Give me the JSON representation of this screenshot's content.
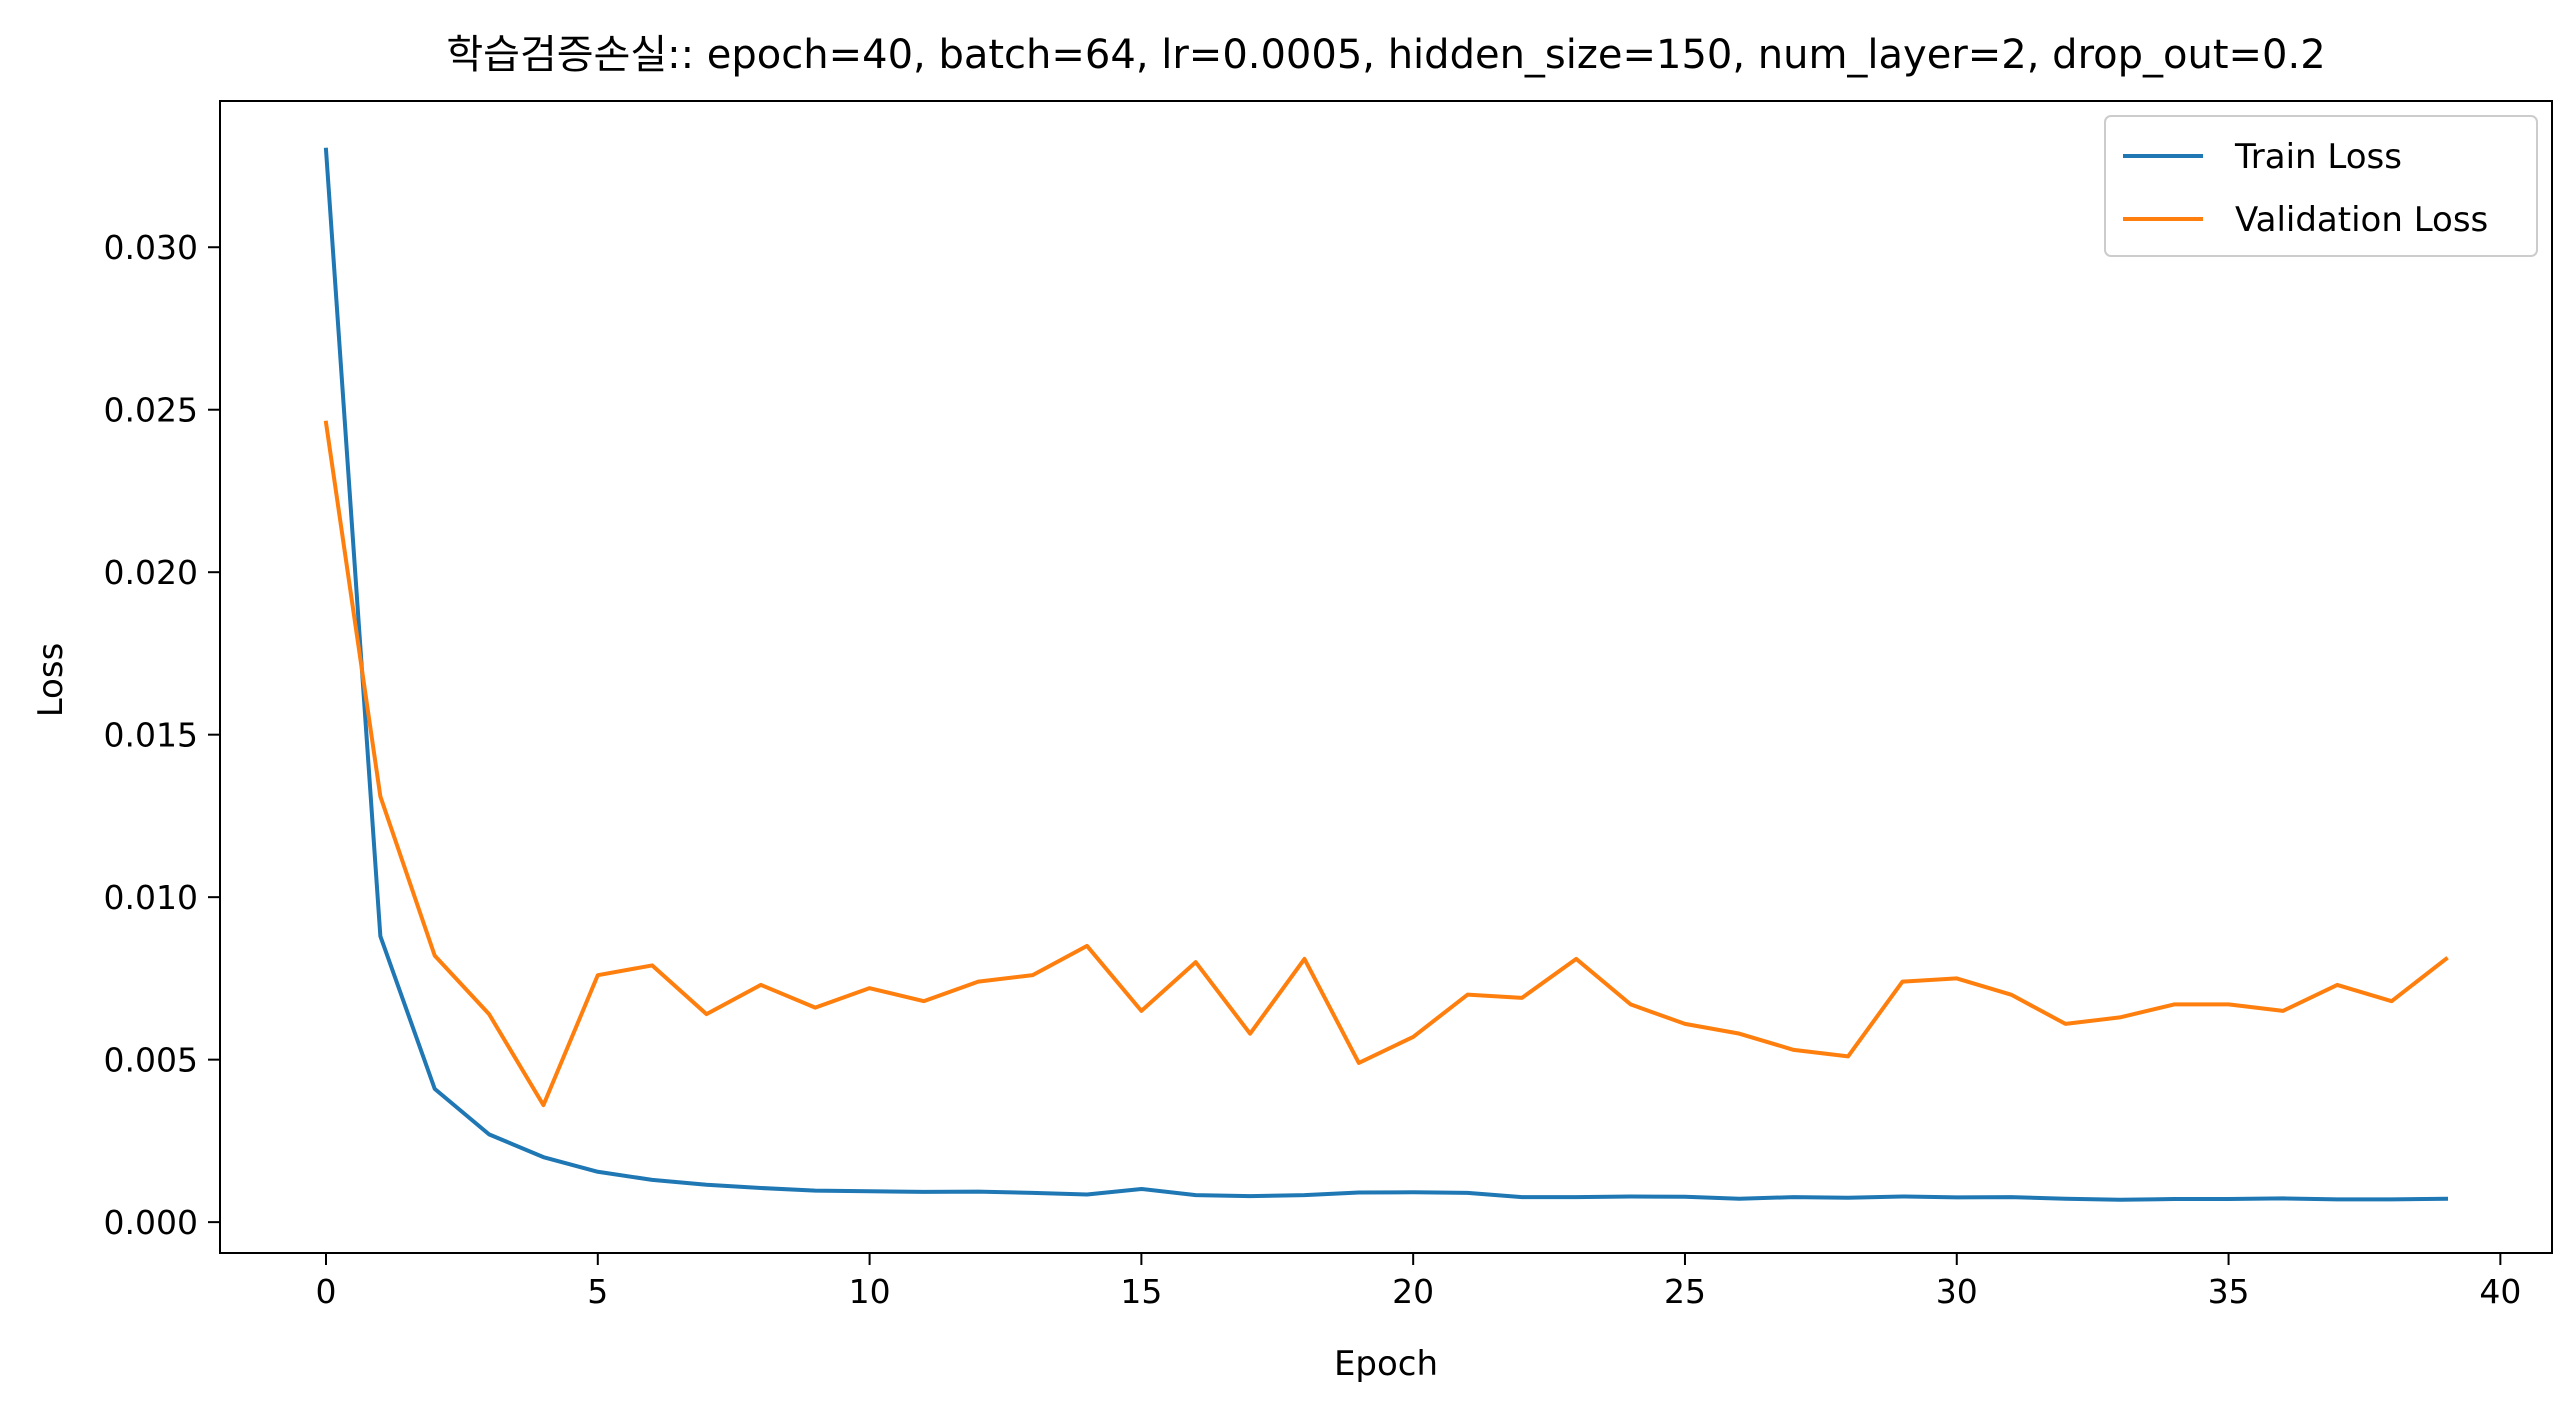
{
  "chart_data": {
    "type": "line",
    "title": "학습검증손실:: epoch=40, batch=64, lr=0.0005, hidden_size=150, num_layer=2, drop_out=0.2",
    "xlabel": "Epoch",
    "ylabel": "Loss",
    "xlim": [
      -1.95,
      40.95
    ],
    "ylim": [
      -0.00095,
      0.0345
    ],
    "xticks": [
      0,
      5,
      10,
      15,
      20,
      25,
      30,
      35,
      40
    ],
    "xtick_labels": [
      "0",
      "5",
      "10",
      "15",
      "20",
      "25",
      "30",
      "35",
      "40"
    ],
    "yticks": [
      0.0,
      0.005,
      0.01,
      0.015,
      0.02,
      0.025,
      0.03
    ],
    "ytick_labels": [
      "0.000",
      "0.005",
      "0.010",
      "0.015",
      "0.020",
      "0.025",
      "0.030"
    ],
    "grid": false,
    "legend_position": "top-right",
    "x": [
      0,
      1,
      2,
      3,
      4,
      5,
      6,
      7,
      8,
      9,
      10,
      11,
      12,
      13,
      14,
      15,
      16,
      17,
      18,
      19,
      20,
      21,
      22,
      23,
      24,
      25,
      26,
      27,
      28,
      29,
      30,
      31,
      32,
      33,
      34,
      35,
      36,
      37,
      38,
      39
    ],
    "series": [
      {
        "name": "Train Loss",
        "color": "#1f77b4",
        "values": [
          0.033,
          0.0088,
          0.0041,
          0.0027,
          0.002,
          0.00155,
          0.0013,
          0.00115,
          0.00105,
          0.00097,
          0.00095,
          0.00093,
          0.00094,
          0.0009,
          0.00085,
          0.00102,
          0.00083,
          0.0008,
          0.00083,
          0.00091,
          0.00092,
          0.0009,
          0.00077,
          0.00077,
          0.00079,
          0.00078,
          0.00072,
          0.00077,
          0.00075,
          0.00079,
          0.00076,
          0.00077,
          0.00072,
          0.00069,
          0.00071,
          0.00071,
          0.00073,
          0.0007,
          0.0007,
          0.00072
        ]
      },
      {
        "name": "Validation Loss",
        "color": "#ff7f0e",
        "values": [
          0.0246,
          0.0131,
          0.0082,
          0.0064,
          0.0036,
          0.0076,
          0.0079,
          0.0064,
          0.0073,
          0.0066,
          0.0072,
          0.0068,
          0.0074,
          0.0076,
          0.0085,
          0.0065,
          0.008,
          0.0058,
          0.0081,
          0.0049,
          0.0057,
          0.007,
          0.0069,
          0.0081,
          0.0067,
          0.0061,
          0.0058,
          0.0053,
          0.0051,
          0.0074,
          0.0075,
          0.007,
          0.0061,
          0.0063,
          0.0067,
          0.0067,
          0.0065,
          0.0073,
          0.0068,
          0.0081
        ]
      }
    ]
  }
}
